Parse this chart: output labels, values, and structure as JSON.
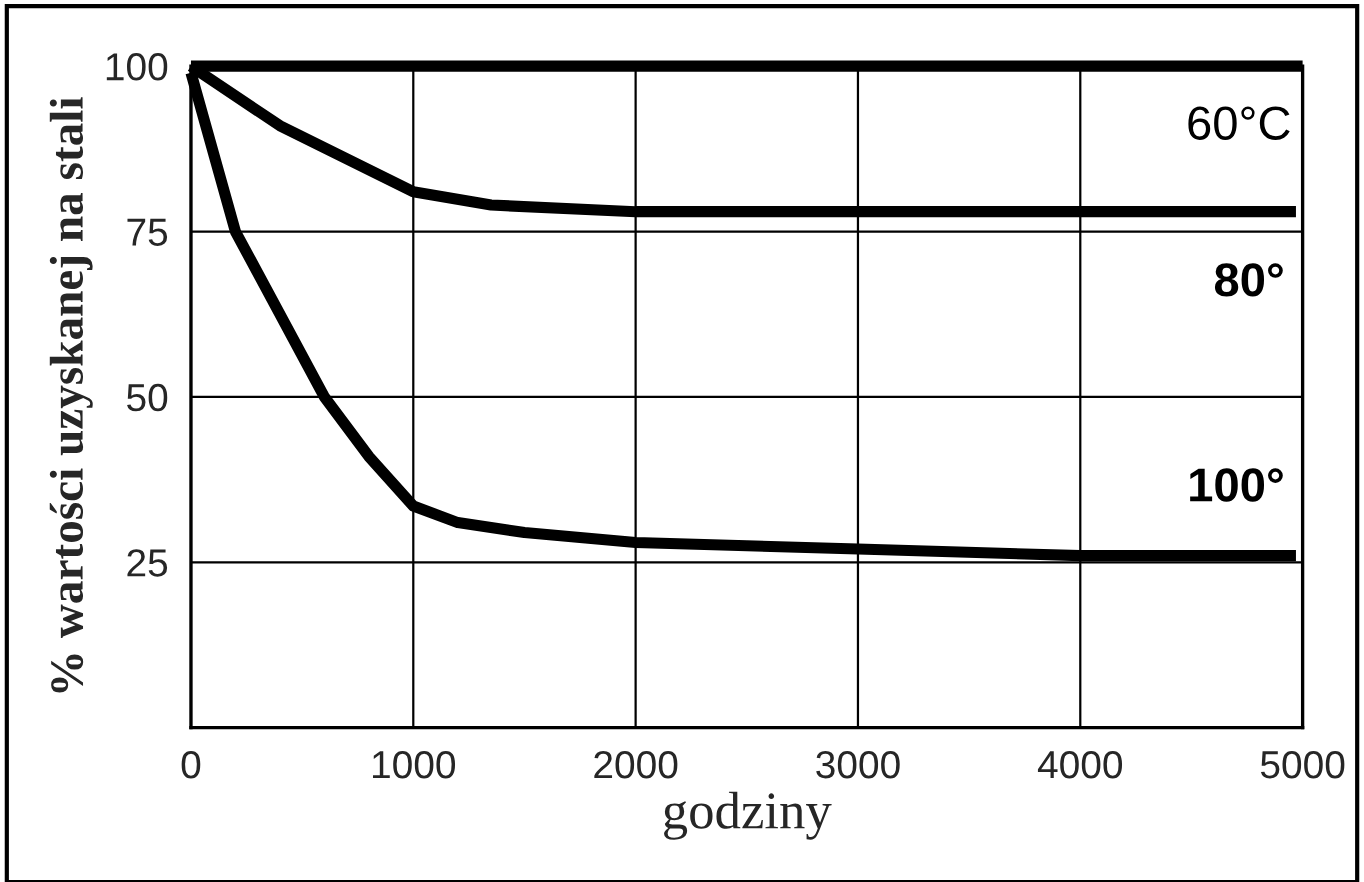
{
  "chart_data": {
    "type": "line",
    "xlabel": "godziny",
    "ylabel": "% wartości uzyskanej na stali",
    "xlim": [
      0,
      5000
    ],
    "ylim": [
      0,
      100
    ],
    "xticks": [
      0,
      1000,
      2000,
      3000,
      4000,
      5000
    ],
    "yticks": [
      25,
      50,
      75,
      100
    ],
    "grid": true,
    "legend": false,
    "marker": "none",
    "line_style": "solid",
    "series": [
      {
        "name": "60°C",
        "color": "#000000",
        "x": [
          0,
          5000
        ],
        "values": [
          100,
          100
        ]
      },
      {
        "name": "80°",
        "color": "#000000",
        "x": [
          0,
          400,
          1000,
          1350,
          2000,
          4970
        ],
        "values": [
          100,
          91,
          81,
          79,
          78,
          78
        ]
      },
      {
        "name": "100°",
        "color": "#000000",
        "x": [
          0,
          200,
          600,
          800,
          1000,
          1200,
          1500,
          2000,
          3000,
          4000,
          4970
        ],
        "values": [
          99,
          75,
          50,
          41,
          33.5,
          31,
          29.5,
          28,
          27,
          26,
          26
        ]
      }
    ]
  }
}
